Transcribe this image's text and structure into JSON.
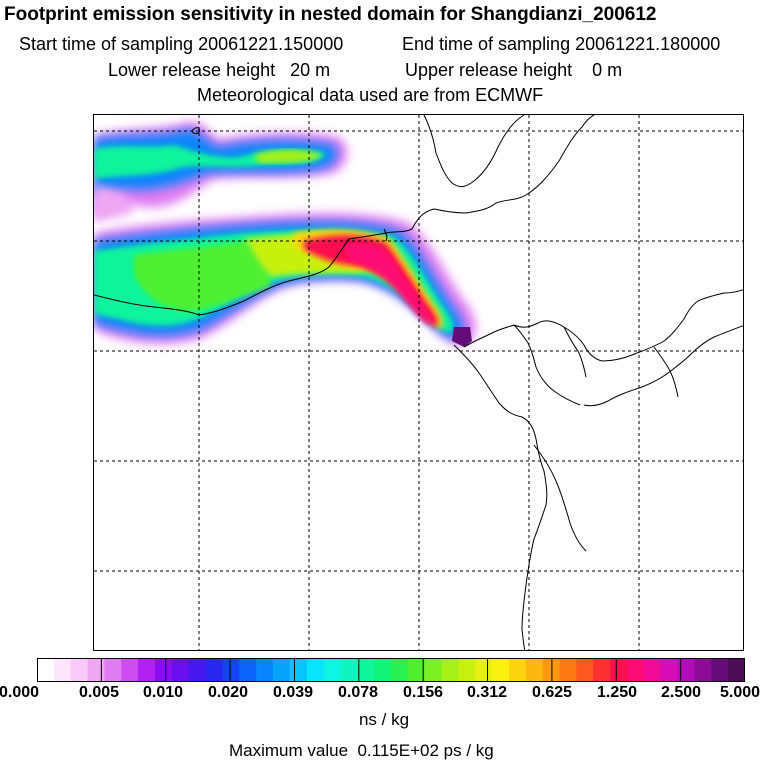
{
  "header": {
    "title": "Footprint emission sensitivity in nested domain for Shangdianzi_200612",
    "start_time": "Start time of sampling 20061221.150000",
    "end_time": "End time of sampling 20061221.180000",
    "lower_release": "Lower release height   20 m",
    "upper_release": "Upper release height    0 m",
    "met_data": "Meteorological data used are from ECMWF"
  },
  "colorbar": {
    "labels": [
      "0.000",
      "0.005",
      "0.010",
      "0.020",
      "0.039",
      "0.078",
      "0.156",
      "0.312",
      "0.625",
      "1.250",
      "2.500",
      "5.000"
    ],
    "colors": [
      "#ffffff",
      "#fde6fd",
      "#f8caf8",
      "#f0a8f4",
      "#e07cf2",
      "#cc4cf0",
      "#b020f0",
      "#8c0cf0",
      "#6a10f0",
      "#4818f0",
      "#2828f0",
      "#1444f4",
      "#0c64f8",
      "#0884fc",
      "#08a4fc",
      "#08c4fc",
      "#08e4fc",
      "#10f4e4",
      "#10f4c0",
      "#10f49c",
      "#10f478",
      "#28f050",
      "#50f030",
      "#7cf020",
      "#a4f018",
      "#c8f010",
      "#e8f010",
      "#fcf010",
      "#fcd410",
      "#fcb810",
      "#fc9810",
      "#fc7810",
      "#fc5820",
      "#fc3030",
      "#fc1050",
      "#fc0c74",
      "#f00c98",
      "#d80cb8",
      "#b00cb8",
      "#8c0c98",
      "#640c78",
      "#4c0c54"
    ],
    "units": "ns / kg",
    "max_value": "Maximum value  0.115E+02 ps / kg"
  }
}
